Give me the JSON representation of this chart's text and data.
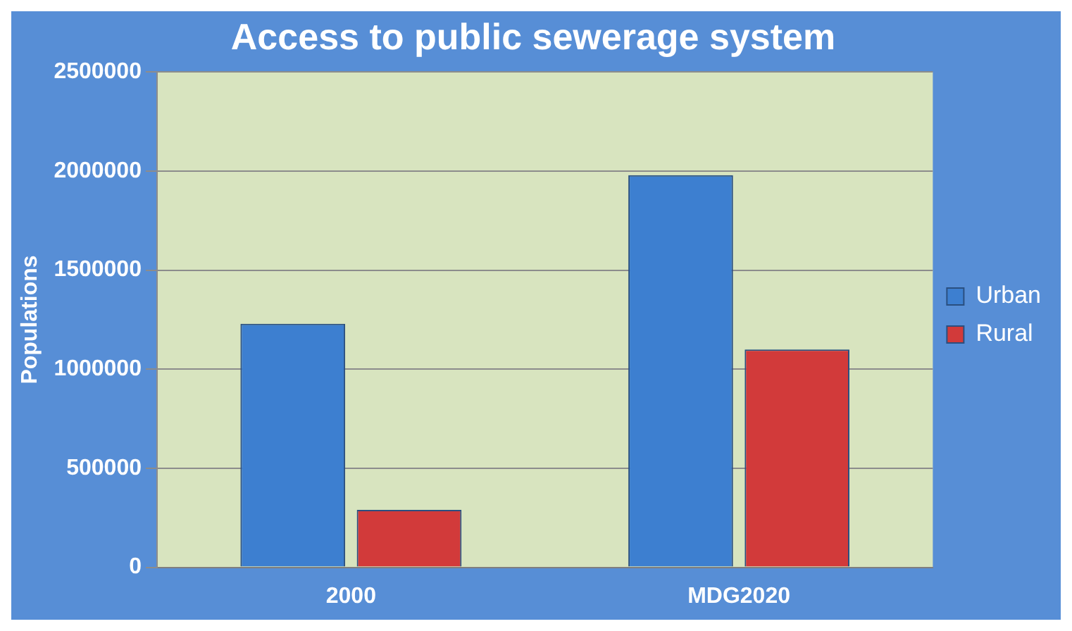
{
  "chart_data": {
    "type": "bar",
    "title": "Access to public sewerage system",
    "ylabel": "Populations",
    "categories": [
      "2000",
      "MDG2020"
    ],
    "series": [
      {
        "name": "Urban",
        "color": "#3d7fd0",
        "values": [
          1230000,
          1980000
        ]
      },
      {
        "name": "Rural",
        "color": "#d23a3a",
        "values": [
          290000,
          1100000
        ]
      }
    ],
    "ylim": [
      0,
      2500000
    ],
    "yticks": [
      0,
      500000,
      1000000,
      1500000,
      2000000,
      2500000
    ],
    "grid": "y",
    "legend": "right"
  }
}
